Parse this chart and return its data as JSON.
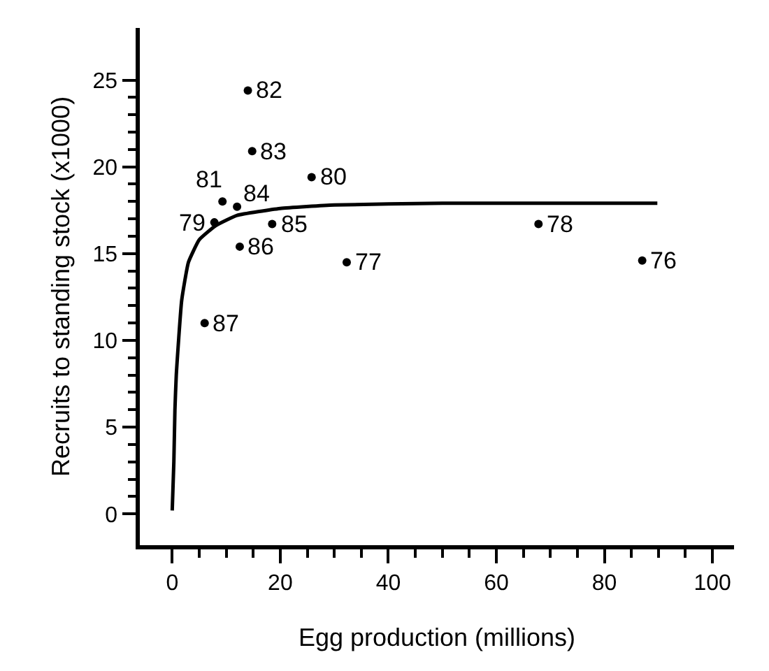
{
  "chart_data": {
    "type": "scatter",
    "xlabel": "Egg production (millions)",
    "ylabel": "Recruits to standing stock (x1000)",
    "xlim": [
      -6,
      104
    ],
    "ylim": [
      -1.8,
      28
    ],
    "xticks": [
      0,
      20,
      40,
      60,
      80,
      100,
      {
        "value": 5,
        "label": null
      },
      {
        "value": 10,
        "label": null
      },
      {
        "value": 15,
        "label": null
      },
      {
        "value": 25,
        "label": null
      },
      {
        "value": 30,
        "label": null
      },
      {
        "value": 35,
        "label": null
      },
      {
        "value": 45,
        "label": null
      },
      {
        "value": 50,
        "label": null
      },
      {
        "value": 55,
        "label": null
      },
      {
        "value": 65,
        "label": null
      },
      {
        "value": 70,
        "label": null
      },
      {
        "value": 75,
        "label": null
      },
      {
        "value": 85,
        "label": null
      },
      {
        "value": 90,
        "label": null
      },
      {
        "value": 95,
        "label": null
      }
    ],
    "yticks": [
      0,
      5,
      10,
      15,
      20,
      25,
      {
        "value": 1,
        "label": null
      },
      {
        "value": 2,
        "label": null
      },
      {
        "value": 3,
        "label": null
      },
      {
        "value": 4,
        "label": null
      },
      {
        "value": 6,
        "label": null
      },
      {
        "value": 7,
        "label": null
      },
      {
        "value": 8,
        "label": null
      },
      {
        "value": 9,
        "label": null
      },
      {
        "value": 11,
        "label": null
      },
      {
        "value": 12,
        "label": null
      },
      {
        "value": 13,
        "label": null
      },
      {
        "value": 14,
        "label": null
      },
      {
        "value": 16,
        "label": null
      },
      {
        "value": 17,
        "label": null
      },
      {
        "value": 18,
        "label": null
      },
      {
        "value": 19,
        "label": null
      },
      {
        "value": 21,
        "label": null
      },
      {
        "value": 22,
        "label": null
      },
      {
        "value": 23,
        "label": null
      },
      {
        "value": 24,
        "label": null
      }
    ],
    "grid": false,
    "annotations": [
      {
        "text": "76",
        "x": 87,
        "y": 14.6
      },
      {
        "text": "77",
        "x": 32.3,
        "y": 14.5
      },
      {
        "text": "78",
        "x": 67.8,
        "y": 16.7
      },
      {
        "text": "79",
        "x": 7.8,
        "y": 16.8
      },
      {
        "text": "80",
        "x": 25.8,
        "y": 19.4
      },
      {
        "text": "81",
        "x": 9.3,
        "y": 18
      },
      {
        "text": "82",
        "x": 14,
        "y": 24.4
      },
      {
        "text": "83",
        "x": 14.8,
        "y": 20.9
      },
      {
        "text": "84",
        "x": 12,
        "y": 17.7
      },
      {
        "text": "85",
        "x": 18.5,
        "y": 16.7
      },
      {
        "text": "86",
        "x": 12.5,
        "y": 15.4
      },
      {
        "text": "87",
        "x": 6,
        "y": 11
      }
    ],
    "series": [
      {
        "color": "#000000",
        "marker": "circle",
        "x": [
          87,
          32.3,
          67.8,
          7.8,
          25.8,
          9.3,
          14,
          14.8,
          12,
          18.5,
          12.5,
          6
        ],
        "values": [
          14.6,
          14.5,
          16.7,
          16.8,
          19.4,
          18,
          24.4,
          20.9,
          17.7,
          16.7,
          15.4,
          11
        ]
      },
      {
        "type": "line",
        "color": "#000000",
        "marker": "none",
        "line_style": "solid",
        "x": [
          0,
          0.3,
          0.5,
          0.75,
          1.75,
          3,
          5,
          8,
          12,
          20,
          30,
          50,
          70,
          89.8
        ],
        "values": [
          0.2,
          3,
          6,
          8,
          12.3,
          14.5,
          15.8,
          16.6,
          17.2,
          17.6,
          17.8,
          17.9,
          17.9,
          17.9
        ]
      }
    ]
  }
}
